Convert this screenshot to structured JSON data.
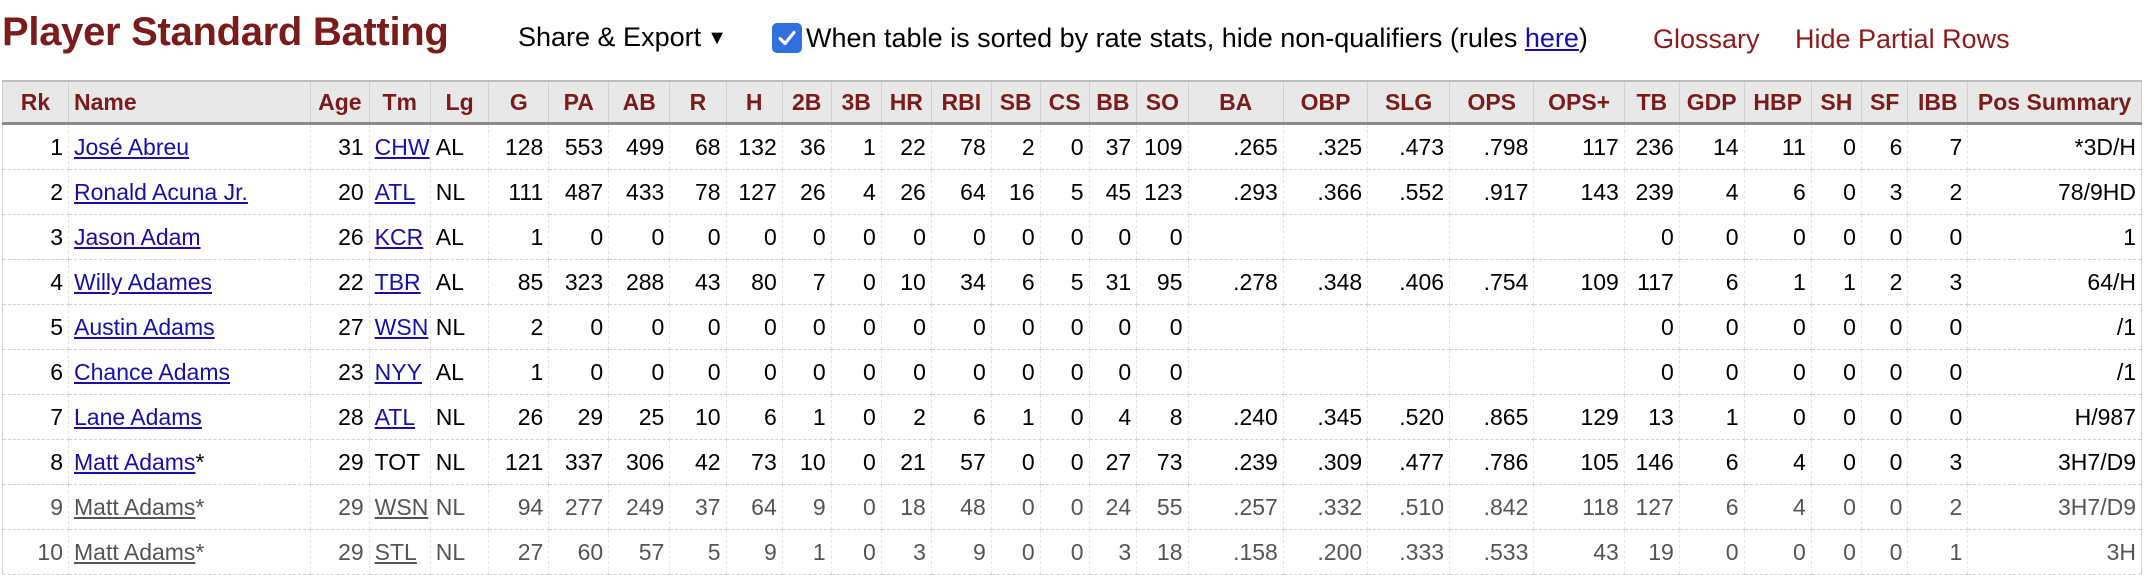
{
  "header": {
    "title": "Player Standard Batting",
    "share_export_label": "Share & Export",
    "share_export_caret": "▼",
    "qualifier_text_before": "When table is sorted by rate stats, hide non-qualifiers (rules ",
    "qualifier_link": "here",
    "qualifier_text_after": ")",
    "qualifier_checked": true,
    "glossary_label": "Glossary",
    "hide_partial_label": "Hide Partial Rows"
  },
  "table": {
    "columns": [
      "Rk",
      "Name",
      "Age",
      "Tm",
      "Lg",
      "G",
      "PA",
      "AB",
      "R",
      "H",
      "2B",
      "3B",
      "HR",
      "RBI",
      "SB",
      "CS",
      "BB",
      "SO",
      "BA",
      "OBP",
      "SLG",
      "OPS",
      "OPS+",
      "TB",
      "GDP",
      "HBP",
      "SH",
      "SF",
      "IBB",
      "Pos Summary"
    ],
    "rows": [
      {
        "rk": "1",
        "name": "José Abreu",
        "suffix": "",
        "age": "31",
        "tm": "CHW",
        "tm_link": true,
        "lg": "AL",
        "g": "128",
        "pa": "553",
        "ab": "499",
        "r": "68",
        "h": "132",
        "b2": "36",
        "b3": "1",
        "hr": "22",
        "rbi": "78",
        "sb": "2",
        "cs": "0",
        "bb": "37",
        "so": "109",
        "ba": ".265",
        "obp": ".325",
        "slg": ".473",
        "ops": ".798",
        "opsplus": "117",
        "tb": "236",
        "gdp": "14",
        "hbp": "11",
        "sh": "0",
        "sf": "6",
        "ibb": "7",
        "pos": "*3D/H",
        "partial": false
      },
      {
        "rk": "2",
        "name": "Ronald Acuna Jr.",
        "suffix": "",
        "age": "20",
        "tm": "ATL",
        "tm_link": true,
        "lg": "NL",
        "g": "111",
        "pa": "487",
        "ab": "433",
        "r": "78",
        "h": "127",
        "b2": "26",
        "b3": "4",
        "hr": "26",
        "rbi": "64",
        "sb": "16",
        "cs": "5",
        "bb": "45",
        "so": "123",
        "ba": ".293",
        "obp": ".366",
        "slg": ".552",
        "ops": ".917",
        "opsplus": "143",
        "tb": "239",
        "gdp": "4",
        "hbp": "6",
        "sh": "0",
        "sf": "3",
        "ibb": "2",
        "pos": "78/9HD",
        "partial": false
      },
      {
        "rk": "3",
        "name": "Jason Adam",
        "suffix": "",
        "age": "26",
        "tm": "KCR",
        "tm_link": true,
        "lg": "AL",
        "g": "1",
        "pa": "0",
        "ab": "0",
        "r": "0",
        "h": "0",
        "b2": "0",
        "b3": "0",
        "hr": "0",
        "rbi": "0",
        "sb": "0",
        "cs": "0",
        "bb": "0",
        "so": "0",
        "ba": "",
        "obp": "",
        "slg": "",
        "ops": "",
        "opsplus": "",
        "tb": "0",
        "gdp": "0",
        "hbp": "0",
        "sh": "0",
        "sf": "0",
        "ibb": "0",
        "pos": "1",
        "partial": false
      },
      {
        "rk": "4",
        "name": "Willy Adames",
        "suffix": "",
        "age": "22",
        "tm": "TBR",
        "tm_link": true,
        "lg": "AL",
        "g": "85",
        "pa": "323",
        "ab": "288",
        "r": "43",
        "h": "80",
        "b2": "7",
        "b3": "0",
        "hr": "10",
        "rbi": "34",
        "sb": "6",
        "cs": "5",
        "bb": "31",
        "so": "95",
        "ba": ".278",
        "obp": ".348",
        "slg": ".406",
        "ops": ".754",
        "opsplus": "109",
        "tb": "117",
        "gdp": "6",
        "hbp": "1",
        "sh": "1",
        "sf": "2",
        "ibb": "3",
        "pos": "64/H",
        "partial": false
      },
      {
        "rk": "5",
        "name": "Austin Adams",
        "suffix": "",
        "age": "27",
        "tm": "WSN",
        "tm_link": true,
        "lg": "NL",
        "g": "2",
        "pa": "0",
        "ab": "0",
        "r": "0",
        "h": "0",
        "b2": "0",
        "b3": "0",
        "hr": "0",
        "rbi": "0",
        "sb": "0",
        "cs": "0",
        "bb": "0",
        "so": "0",
        "ba": "",
        "obp": "",
        "slg": "",
        "ops": "",
        "opsplus": "",
        "tb": "0",
        "gdp": "0",
        "hbp": "0",
        "sh": "0",
        "sf": "0",
        "ibb": "0",
        "pos": "/1",
        "partial": false
      },
      {
        "rk": "6",
        "name": "Chance Adams",
        "suffix": "",
        "age": "23",
        "tm": "NYY",
        "tm_link": true,
        "lg": "AL",
        "g": "1",
        "pa": "0",
        "ab": "0",
        "r": "0",
        "h": "0",
        "b2": "0",
        "b3": "0",
        "hr": "0",
        "rbi": "0",
        "sb": "0",
        "cs": "0",
        "bb": "0",
        "so": "0",
        "ba": "",
        "obp": "",
        "slg": "",
        "ops": "",
        "opsplus": "",
        "tb": "0",
        "gdp": "0",
        "hbp": "0",
        "sh": "0",
        "sf": "0",
        "ibb": "0",
        "pos": "/1",
        "partial": false
      },
      {
        "rk": "7",
        "name": "Lane Adams",
        "suffix": "",
        "age": "28",
        "tm": "ATL",
        "tm_link": true,
        "lg": "NL",
        "g": "26",
        "pa": "29",
        "ab": "25",
        "r": "10",
        "h": "6",
        "b2": "1",
        "b3": "0",
        "hr": "2",
        "rbi": "6",
        "sb": "1",
        "cs": "0",
        "bb": "4",
        "so": "8",
        "ba": ".240",
        "obp": ".345",
        "slg": ".520",
        "ops": ".865",
        "opsplus": "129",
        "tb": "13",
        "gdp": "1",
        "hbp": "0",
        "sh": "0",
        "sf": "0",
        "ibb": "0",
        "pos": "H/987",
        "partial": false
      },
      {
        "rk": "8",
        "name": "Matt Adams",
        "suffix": "*",
        "age": "29",
        "tm": "TOT",
        "tm_link": false,
        "lg": "NL",
        "g": "121",
        "pa": "337",
        "ab": "306",
        "r": "42",
        "h": "73",
        "b2": "10",
        "b3": "0",
        "hr": "21",
        "rbi": "57",
        "sb": "0",
        "cs": "0",
        "bb": "27",
        "so": "73",
        "ba": ".239",
        "obp": ".309",
        "slg": ".477",
        "ops": ".786",
        "opsplus": "105",
        "tb": "146",
        "gdp": "6",
        "hbp": "4",
        "sh": "0",
        "sf": "0",
        "ibb": "3",
        "pos": "3H7/D9",
        "partial": false
      },
      {
        "rk": "9",
        "name": "Matt Adams",
        "suffix": "*",
        "age": "29",
        "tm": "WSN",
        "tm_link": true,
        "lg": "NL",
        "g": "94",
        "pa": "277",
        "ab": "249",
        "r": "37",
        "h": "64",
        "b2": "9",
        "b3": "0",
        "hr": "18",
        "rbi": "48",
        "sb": "0",
        "cs": "0",
        "bb": "24",
        "so": "55",
        "ba": ".257",
        "obp": ".332",
        "slg": ".510",
        "ops": ".842",
        "opsplus": "118",
        "tb": "127",
        "gdp": "6",
        "hbp": "4",
        "sh": "0",
        "sf": "0",
        "ibb": "2",
        "pos": "3H7/D9",
        "partial": true
      },
      {
        "rk": "10",
        "name": "Matt Adams",
        "suffix": "*",
        "age": "29",
        "tm": "STL",
        "tm_link": true,
        "lg": "NL",
        "g": "27",
        "pa": "60",
        "ab": "57",
        "r": "5",
        "h": "9",
        "b2": "1",
        "b3": "0",
        "hr": "3",
        "rbi": "9",
        "sb": "0",
        "cs": "0",
        "bb": "3",
        "so": "18",
        "ba": ".158",
        "obp": ".200",
        "slg": ".333",
        "ops": ".533",
        "opsplus": "43",
        "tb": "19",
        "gdp": "0",
        "hbp": "0",
        "sh": "0",
        "sf": "0",
        "ibb": "1",
        "pos": "3H",
        "partial": true
      }
    ]
  },
  "colors": {
    "title": "#7a1c1c",
    "header_link": "#8e1a1a",
    "link": "#1a0dab",
    "checkbox": "#2f6fde"
  }
}
